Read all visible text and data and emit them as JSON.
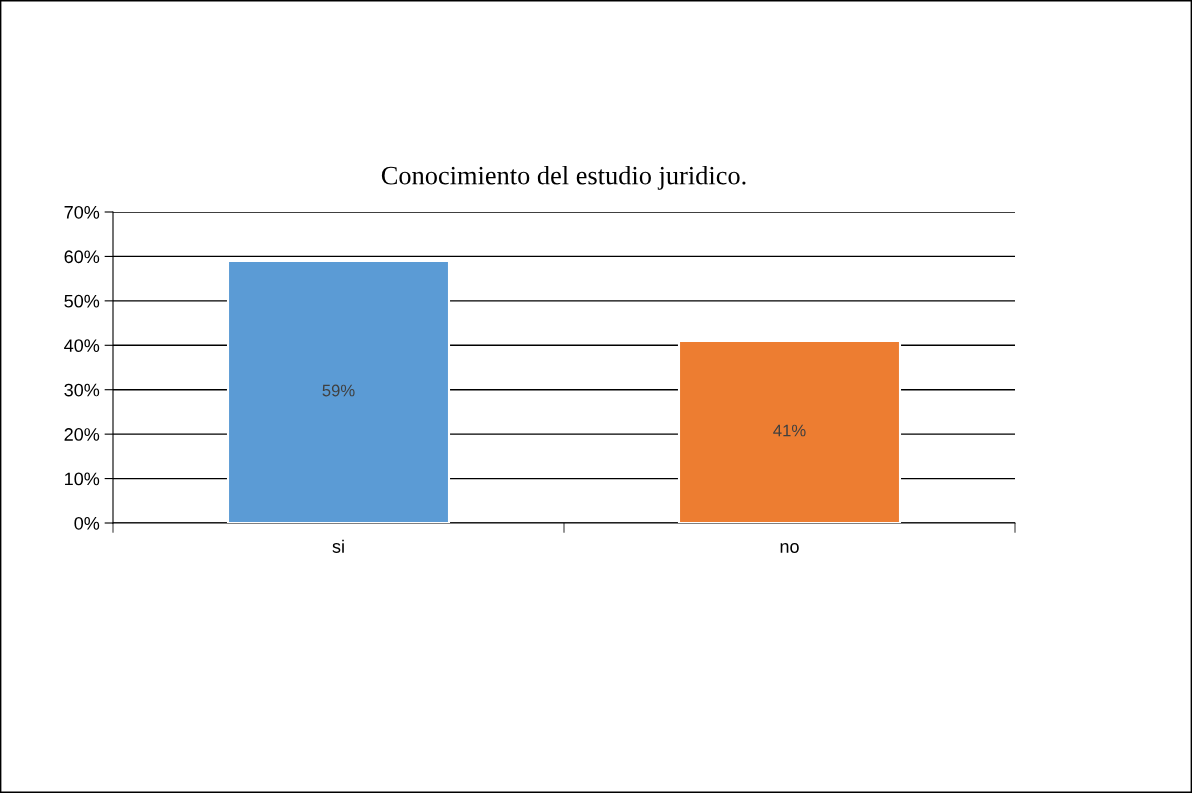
{
  "chart_data": {
    "type": "bar",
    "title": "Conocimiento del estudio juridico.",
    "categories": [
      "si",
      "no"
    ],
    "values": [
      59,
      41
    ],
    "colors": [
      "#5b9bd5",
      "#ed7d31"
    ],
    "value_labels": [
      "59%",
      "41%"
    ],
    "ylim": [
      0,
      70
    ],
    "yticks": [
      {
        "value": 0,
        "label": "0%"
      },
      {
        "value": 10,
        "label": "10%"
      },
      {
        "value": 20,
        "label": "20%"
      },
      {
        "value": 30,
        "label": "30%"
      },
      {
        "value": 40,
        "label": "40%"
      },
      {
        "value": 50,
        "label": "50%"
      },
      {
        "value": 60,
        "label": "60%"
      },
      {
        "value": 70,
        "label": "70%"
      }
    ],
    "grid": "y"
  }
}
